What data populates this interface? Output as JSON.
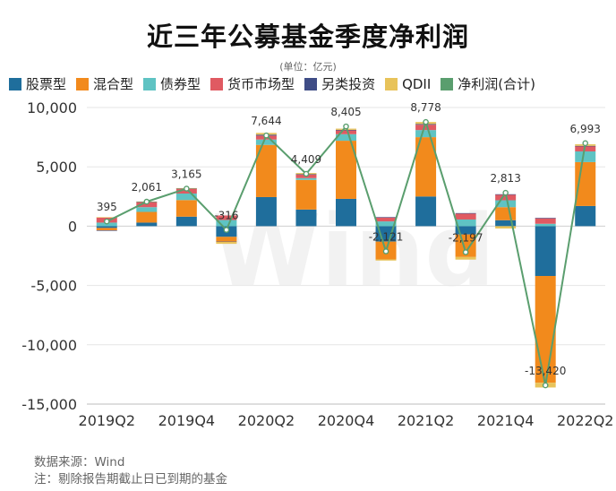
{
  "title": "近三年公募基金季度净利润",
  "unit_label": "(单位：亿元)",
  "source": "数据来源：Wind",
  "note": "注：剔除报告期截止日已到期的基金",
  "watermark": "Wind",
  "colors": {
    "stock": "#1f6e9c",
    "mixed": "#f28a1c",
    "bond": "#5fc3c3",
    "money": "#e05a62",
    "alt": "#3f4d86",
    "qdii": "#e8c35a",
    "net": "#5a9e6e"
  },
  "legend": [
    {
      "label": "股票型",
      "color": "#1f6e9c"
    },
    {
      "label": "混合型",
      "color": "#f28a1c"
    },
    {
      "label": "债券型",
      "color": "#5fc3c3"
    },
    {
      "label": "货币市场型",
      "color": "#e05a62"
    },
    {
      "label": "另类投资",
      "color": "#3f4d86"
    },
    {
      "label": "QDII",
      "color": "#e8c35a"
    },
    {
      "label": "净利润(合计)",
      "color": "#5a9e6e"
    }
  ],
  "chart_data": {
    "type": "bar",
    "stacked": true,
    "categories": [
      "2019Q2",
      "2019Q3",
      "2019Q4",
      "2020Q1",
      "2020Q2",
      "2020Q3",
      "2020Q4",
      "2021Q1",
      "2021Q2",
      "2021Q3",
      "2021Q4",
      "2022Q1",
      "2022Q2"
    ],
    "x_tick_labels": [
      "2019Q2",
      "",
      "2019Q4",
      "",
      "2020Q2",
      "",
      "2020Q4",
      "",
      "2021Q2",
      "",
      "2021Q4",
      "",
      "2022Q2"
    ],
    "ylim": [
      -15000,
      10000
    ],
    "yticks": [
      -15000,
      -10000,
      -5000,
      0,
      5000,
      10000
    ],
    "ytick_labels": [
      "-15,000",
      "-10,000",
      "-5,000",
      "0",
      "5,000",
      "10,000"
    ],
    "series": [
      {
        "name": "股票型",
        "key": "stock",
        "values": [
          -150,
          300,
          800,
          -900,
          2450,
          1400,
          2300,
          -1300,
          2500,
          -700,
          500,
          -4200,
          1700
        ]
      },
      {
        "name": "混合型",
        "key": "mixed",
        "values": [
          -200,
          900,
          1400,
          -400,
          4400,
          2500,
          4900,
          -1500,
          5000,
          -1900,
          1100,
          -9000,
          3700
        ]
      },
      {
        "name": "债券型",
        "key": "bond",
        "values": [
          300,
          400,
          550,
          520,
          450,
          150,
          550,
          400,
          600,
          560,
          580,
          200,
          900
        ]
      },
      {
        "name": "货币市场型",
        "key": "money",
        "values": [
          450,
          420,
          400,
          380,
          330,
          290,
          320,
          350,
          450,
          500,
          480,
          480,
          450
        ]
      },
      {
        "name": "另类投资",
        "key": "alt",
        "values": [
          -10,
          20,
          30,
          -30,
          80,
          40,
          50,
          10,
          60,
          40,
          30,
          10,
          20
        ]
      },
      {
        "name": "QDII",
        "key": "qdii",
        "values": [
          5,
          40,
          30,
          -160,
          150,
          100,
          100,
          -100,
          170,
          -220,
          -200,
          -400,
          130
        ]
      }
    ],
    "net": {
      "name": "净利润(合计)",
      "values": [
        395,
        2061,
        3165,
        -316,
        7644,
        4409,
        8405,
        -2121,
        8778,
        -2197,
        2813,
        -13420,
        6993
      ],
      "labels": [
        "395",
        "2,061",
        "3,165",
        "-316",
        "7,644",
        "4,409",
        "8,405",
        "-2,121",
        "8,778",
        "-2,197",
        "2,813",
        "-13,420",
        "6,993"
      ]
    },
    "grid": "horizontal",
    "legend_position": "top"
  }
}
